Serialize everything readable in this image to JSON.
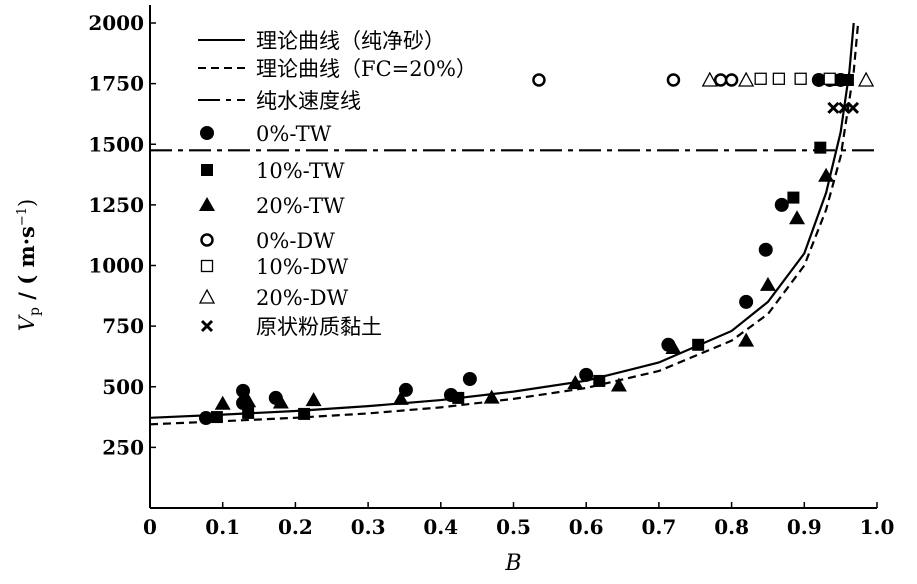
{
  "chart_data": {
    "type": "scatter",
    "xlabel": "B",
    "ylabel": "Vp / (m·s⁻¹)",
    "ylabel_parts": {
      "v": "V",
      "sub": "p",
      "rest": " / ( m·s",
      "sup": "−1",
      "close": ")"
    },
    "xlim": [
      0,
      1.0
    ],
    "ylim": [
      0,
      2000
    ],
    "x_ticks": [
      "0",
      "0.1",
      "0.2",
      "0.3",
      "0.4",
      "0.5",
      "0.6",
      "0.7",
      "0.8",
      "0.9",
      "1.0"
    ],
    "y_ticks": [
      "250",
      "500",
      "750",
      "1000",
      "1250",
      "1500",
      "1750",
      "2000"
    ],
    "legend_position": "top-left",
    "lines": [
      {
        "name": "理论曲线（纯净砂）",
        "style": "solid",
        "x": [
          0,
          0.1,
          0.2,
          0.3,
          0.4,
          0.5,
          0.6,
          0.7,
          0.8,
          0.85,
          0.9,
          0.93,
          0.95,
          0.962,
          0.968
        ],
        "y": [
          372,
          385,
          400,
          420,
          445,
          480,
          525,
          600,
          730,
          850,
          1050,
          1300,
          1550,
          1800,
          2000
        ]
      },
      {
        "name": "理论曲线（FC=20%）",
        "style": "dashed",
        "x": [
          0,
          0.1,
          0.2,
          0.3,
          0.4,
          0.5,
          0.6,
          0.7,
          0.8,
          0.85,
          0.9,
          0.93,
          0.95,
          0.968,
          0.974
        ],
        "y": [
          345,
          358,
          372,
          390,
          415,
          450,
          495,
          565,
          690,
          800,
          1000,
          1230,
          1450,
          1800,
          2000
        ]
      },
      {
        "name": "纯水速度线",
        "style": "dashdot",
        "x": [
          0,
          1.0
        ],
        "y": [
          1475,
          1475
        ]
      }
    ],
    "series": [
      {
        "name": "0%-TW",
        "marker": "circle-filled",
        "x": [
          0.077,
          0.128,
          0.128,
          0.173,
          0.352,
          0.414,
          0.44,
          0.6,
          0.713,
          0.82,
          0.847,
          0.869,
          0.92,
          0.935,
          0.95
        ],
        "y": [
          371,
          483,
          433,
          454,
          487,
          466,
          532,
          549,
          673,
          850,
          1065,
          1250,
          1765,
          1765,
          1765
        ]
      },
      {
        "name": "10%-TW",
        "marker": "square-filled",
        "x": [
          0.092,
          0.135,
          0.212,
          0.424,
          0.618,
          0.754,
          0.885,
          0.922,
          0.945,
          0.96
        ],
        "y": [
          375,
          392,
          388,
          454,
          524,
          673,
          1280,
          1486,
          1765,
          1765
        ]
      },
      {
        "name": "20%-TW",
        "marker": "triangle-filled",
        "x": [
          0.1,
          0.135,
          0.18,
          0.225,
          0.345,
          0.47,
          0.585,
          0.645,
          0.72,
          0.82,
          0.85,
          0.89,
          0.93
        ],
        "y": [
          430,
          440,
          435,
          445,
          450,
          455,
          515,
          505,
          660,
          690,
          920,
          1195,
          1370
        ]
      },
      {
        "name": "0%-DW",
        "marker": "circle-open",
        "x": [
          0.535,
          0.72,
          0.785,
          0.8
        ],
        "y": [
          1765,
          1765,
          1765,
          1765
        ]
      },
      {
        "name": "10%-DW",
        "marker": "square-open",
        "x": [
          0.84,
          0.865,
          0.895,
          0.935
        ],
        "y": [
          1770,
          1770,
          1770,
          1770
        ]
      },
      {
        "name": "20%-DW",
        "marker": "triangle-open",
        "x": [
          0.77,
          0.82,
          0.985
        ],
        "y": [
          1765,
          1765,
          1765
        ]
      },
      {
        "name": "原状粉质黏土",
        "marker": "cross",
        "x": [
          0.94,
          0.955,
          0.967
        ],
        "y": [
          1650,
          1650,
          1650
        ]
      }
    ]
  }
}
